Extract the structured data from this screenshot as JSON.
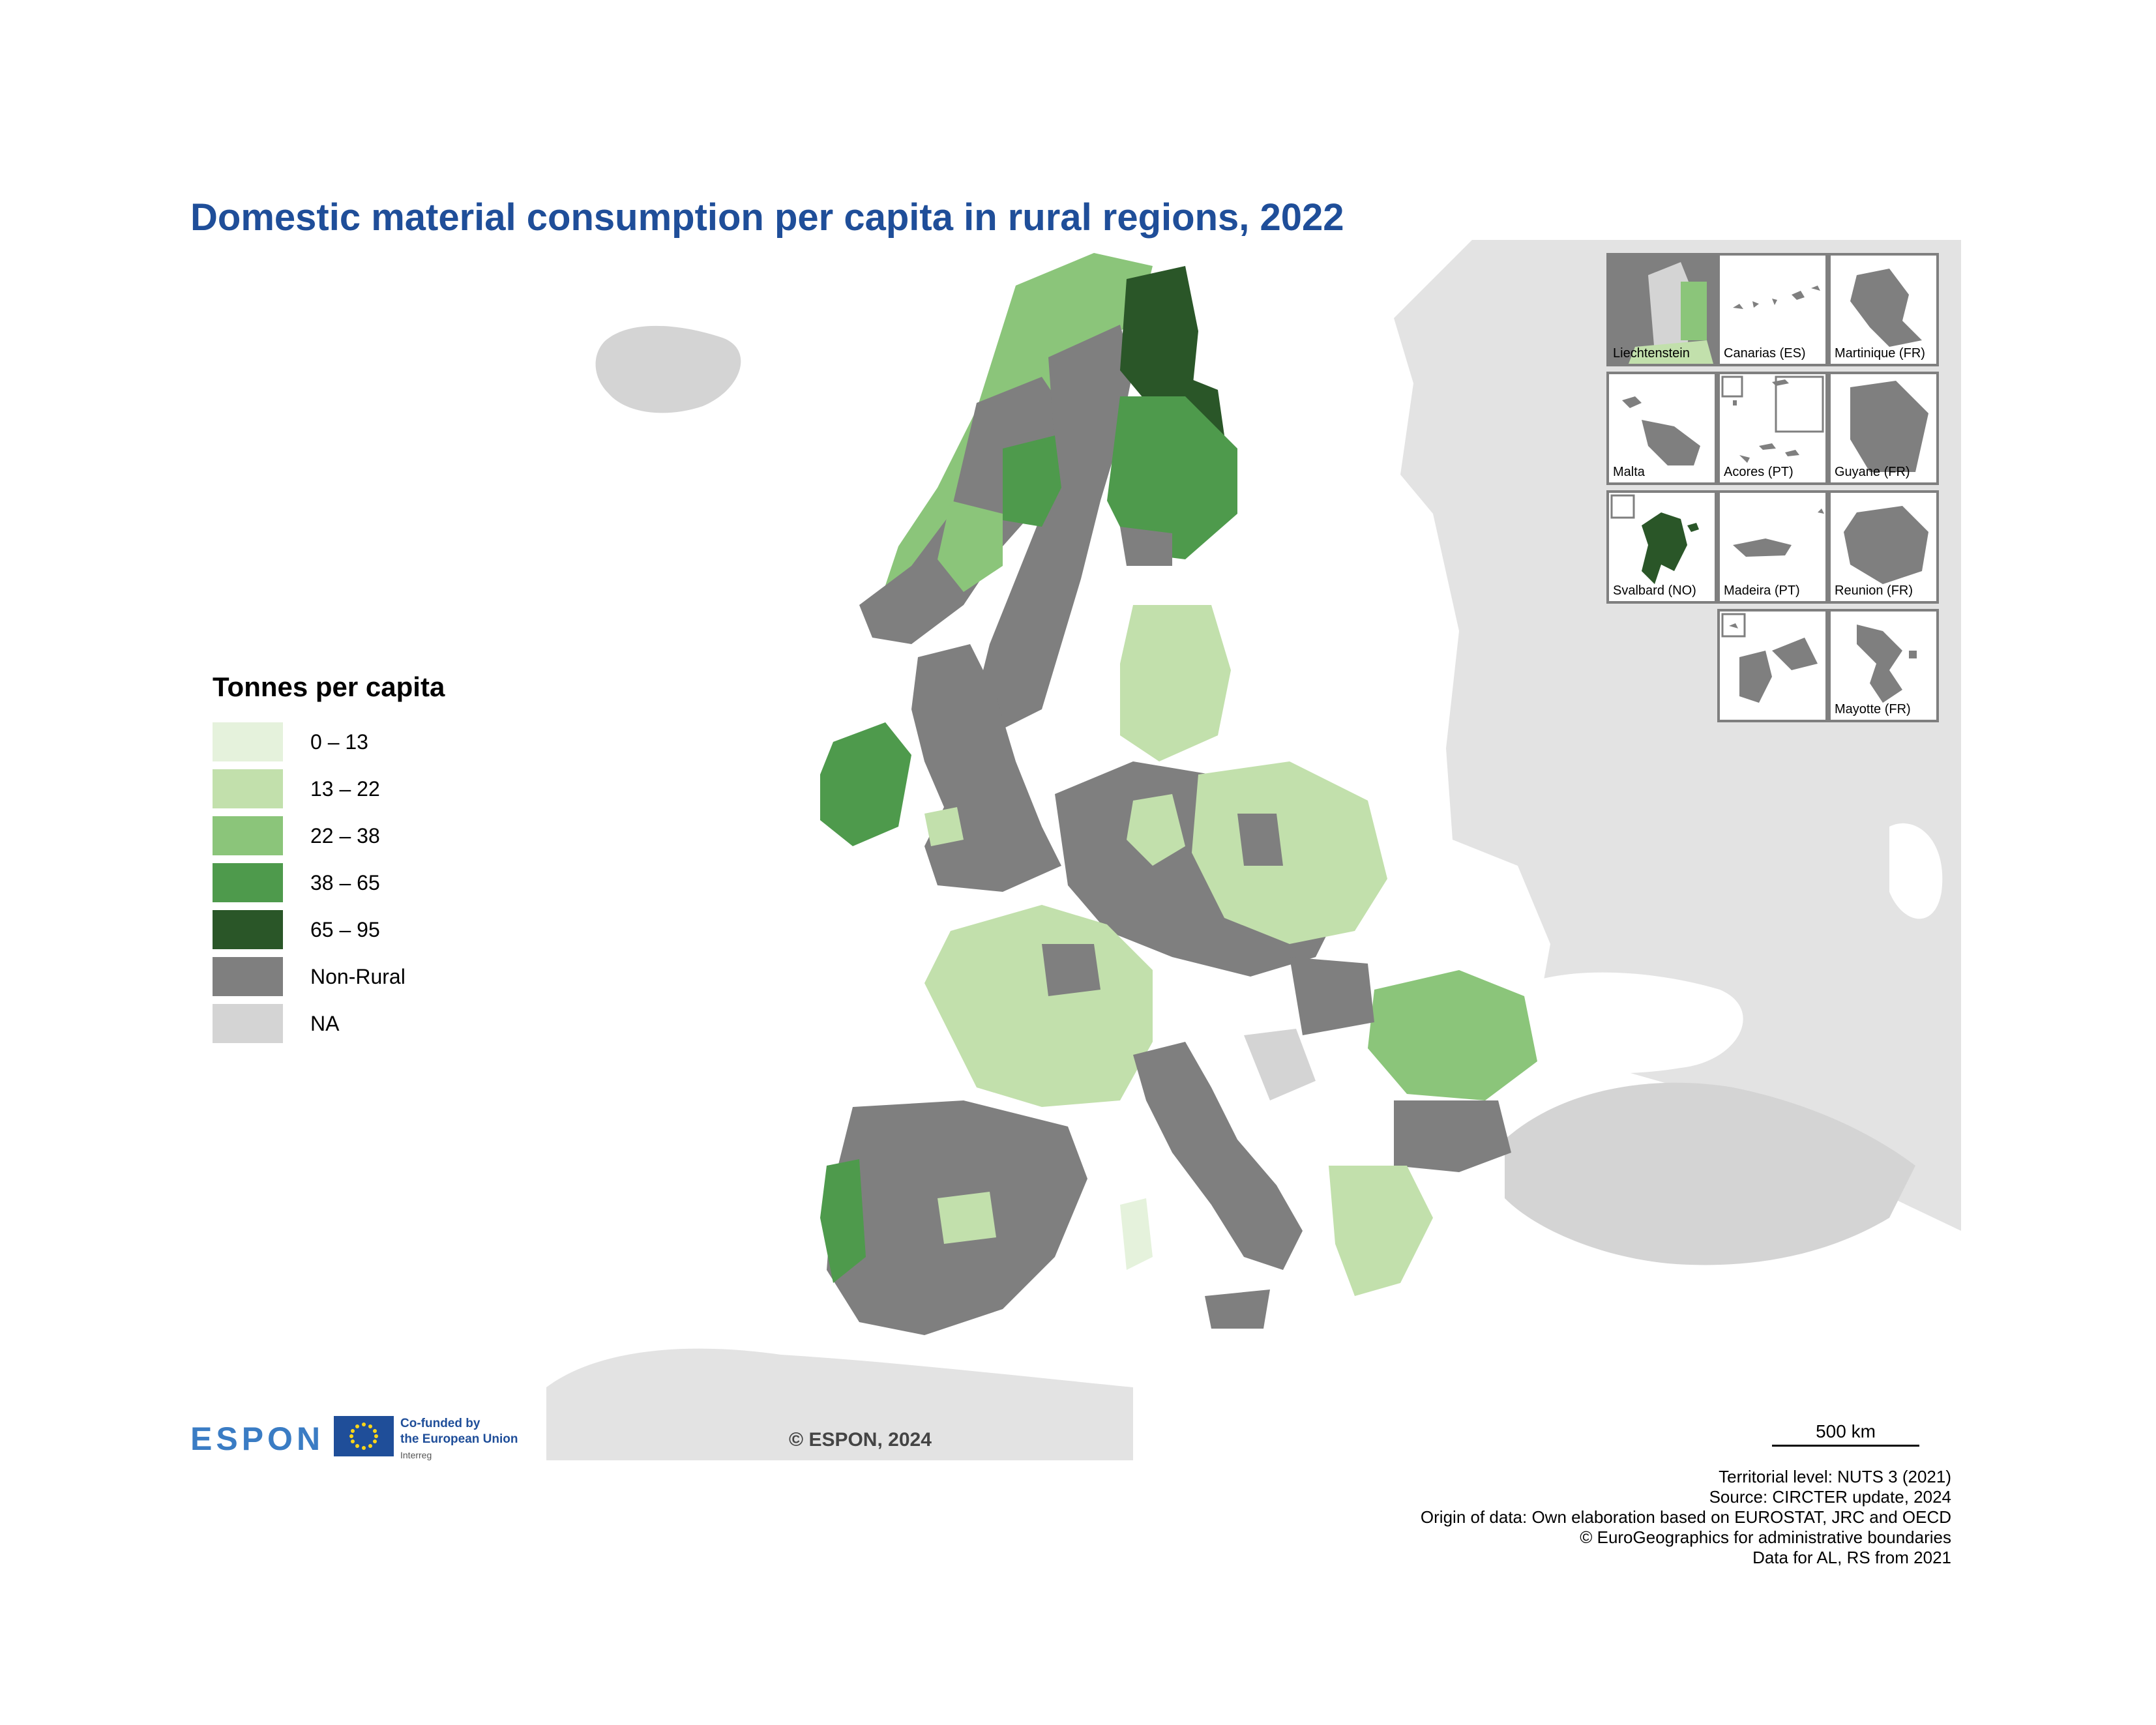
{
  "title": "Domestic material consumption per capita in rural regions, 2022",
  "legend": {
    "title": "Tonnes per capita",
    "items": [
      {
        "label": "0 – 13",
        "color": "#e5f2dc"
      },
      {
        "label": "13 – 22",
        "color": "#c2e0ac"
      },
      {
        "label": "22 – 38",
        "color": "#8bc57a"
      },
      {
        "label": "38 – 65",
        "color": "#4e9a4c"
      },
      {
        "label": "65 – 95",
        "color": "#2a5628"
      },
      {
        "label": "Non-Rural",
        "color": "#7f7f7f"
      },
      {
        "label": "NA",
        "color": "#d4d4d4"
      }
    ]
  },
  "colors": {
    "non_eu_land": "#e3e3e3",
    "na_land": "#d4d4d4",
    "non_rural": "#7f7f7f",
    "title": "#1f4e99"
  },
  "insets": [
    {
      "label": "Liechtenstein"
    },
    {
      "label": "Canarias (ES)"
    },
    {
      "label": "Martinique (FR)"
    },
    {
      "label": "Malta"
    },
    {
      "label": "Acores (PT)"
    },
    {
      "label": "Guyane (FR)"
    },
    {
      "label": "Svalbard (NO)"
    },
    {
      "label": "Madeira (PT)"
    },
    {
      "label": "Reunion (FR)"
    },
    {
      "label": "Mayotte (FR)"
    }
  ],
  "branding": {
    "espon": "ESPON",
    "eu_line1": "Co-funded by",
    "eu_line2": "the European Union",
    "eu_line3": "Interreg",
    "copyright": "© ESPON, 2024"
  },
  "scale_bar": "500 km",
  "footer": [
    "Territorial level: NUTS 3 (2021)",
    "Source: CIRCTER update, 2024",
    "Origin of data: Own elaboration based on EUROSTAT, JRC and OECD",
    "© EuroGeographics for administrative boundaries",
    "Data for AL, RS from 2021"
  ],
  "regions": [
    {
      "name": "Iceland",
      "class": "NA"
    },
    {
      "name": "Norway north coast",
      "class": "22 – 38"
    },
    {
      "name": "Norway interior",
      "class": "Non-Rural"
    },
    {
      "name": "Sweden north",
      "class": "Non-Rural"
    },
    {
      "name": "Sweden Jämtland",
      "class": "38 – 65"
    },
    {
      "name": "Finland Lapland",
      "class": "65 – 95"
    },
    {
      "name": "Finland Kainuu",
      "class": "65 – 95"
    },
    {
      "name": "Finland central",
      "class": "38 – 65"
    },
    {
      "name": "Ireland",
      "class": "38 – 65"
    },
    {
      "name": "United Kingdom",
      "class": "Non-Rural"
    },
    {
      "name": "France",
      "class": "13 – 22"
    },
    {
      "name": "Iberian Peninsula",
      "class": "Non-Rural"
    },
    {
      "name": "Portugal coast",
      "class": "38 – 65"
    },
    {
      "name": "Germany / Benelux",
      "class": "Non-Rural"
    },
    {
      "name": "Poland",
      "class": "13 – 22"
    },
    {
      "name": "Baltic states",
      "class": "13 – 22"
    },
    {
      "name": "Romania",
      "class": "22 – 38"
    },
    {
      "name": "Bulgaria",
      "class": "Non-Rural"
    },
    {
      "name": "Italy",
      "class": "Non-Rural"
    },
    {
      "name": "Greece",
      "class": "13 – 22"
    },
    {
      "name": "Turkey",
      "class": "NA"
    },
    {
      "name": "Bosnia and Herzegovina",
      "class": "NA"
    }
  ]
}
